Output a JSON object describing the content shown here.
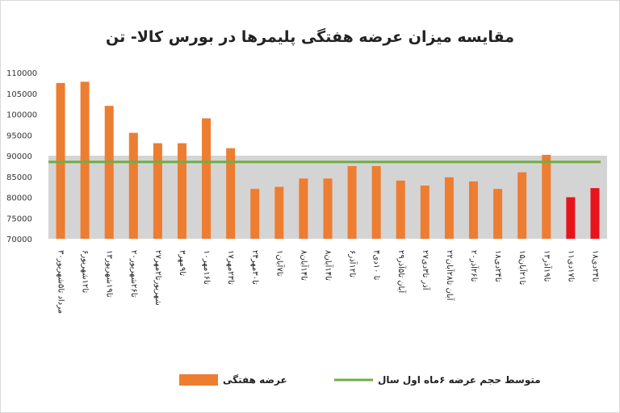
{
  "chart_data": {
    "type": "bar",
    "title": "مقایسه میزان عرضه هفتگی پلیمرها در بورس کالا- تن",
    "categories": [
      "۳۰مرداد تا۵شهریور",
      "۶تا۱۲شهریور",
      "۱۳تا۱۹شهریور",
      "۲۰تا۲۶شهریور",
      "۲۷شهریورتا۲مهر",
      "۳تا۹مهر",
      "۱۰تا۱۶مهر",
      "۱۷تا۲۳مهر",
      "۲۴تا۳۰مهر",
      "۱تا۷آبان",
      "۸تا۱۴آبان",
      "۸تا۱۴آبان",
      "۶تا۱۲آذر",
      "۴تا ۱۰دی",
      "۲۹آبان تا۵آذر",
      "۲۷آذر تا۳دی",
      "۲۲آبان تا۲۸آبان",
      "۲۰تا۲۶آذر",
      "۱۸تا۲۴دی",
      "۱۵تا۲۱آبان",
      "۱۳تا۱۹آذر",
      "۱۱تا۱۷دی",
      "۱۸تا۲۴دی"
    ],
    "series": [
      {
        "name": "عرضه هفتگی",
        "values": [
          107500,
          107800,
          102000,
          95500,
          93000,
          93000,
          99000,
          91800,
          82000,
          82500,
          84500,
          84500,
          87500,
          87500,
          84000,
          82800,
          84800,
          83800,
          82000,
          86000,
          90200,
          80000,
          82200
        ],
        "colors": [
          "#ed7d31",
          "#ed7d31",
          "#ed7d31",
          "#ed7d31",
          "#ed7d31",
          "#ed7d31",
          "#ed7d31",
          "#ed7d31",
          "#ed7d31",
          "#ed7d31",
          "#ed7d31",
          "#ed7d31",
          "#ed7d31",
          "#ed7d31",
          "#ed7d31",
          "#ed7d31",
          "#ed7d31",
          "#ed7d31",
          "#ed7d31",
          "#ed7d31",
          "#ed7d31",
          "#e8141b",
          "#e8141b"
        ]
      },
      {
        "name": "متوسط حجم عرضه ۶ماه اول سال",
        "type": "line",
        "value": 88500,
        "color": "#70ad47"
      }
    ],
    "yticks": [
      "70000",
      "75000",
      "80000",
      "85000",
      "90000",
      "95000",
      "100000",
      "105000",
      "110000"
    ],
    "ytick_values": [
      70000,
      75000,
      80000,
      85000,
      90000,
      95000,
      100000,
      105000,
      110000
    ],
    "ylim": [
      70000,
      110000
    ],
    "grid": false,
    "legend_position": "bottom",
    "shaded_band": [
      70000,
      90000
    ],
    "colors": {
      "bar": "#ed7d31",
      "bar_highlight": "#e8141b",
      "avg_line": "#70ad47",
      "band": "#d4d4d4"
    }
  }
}
